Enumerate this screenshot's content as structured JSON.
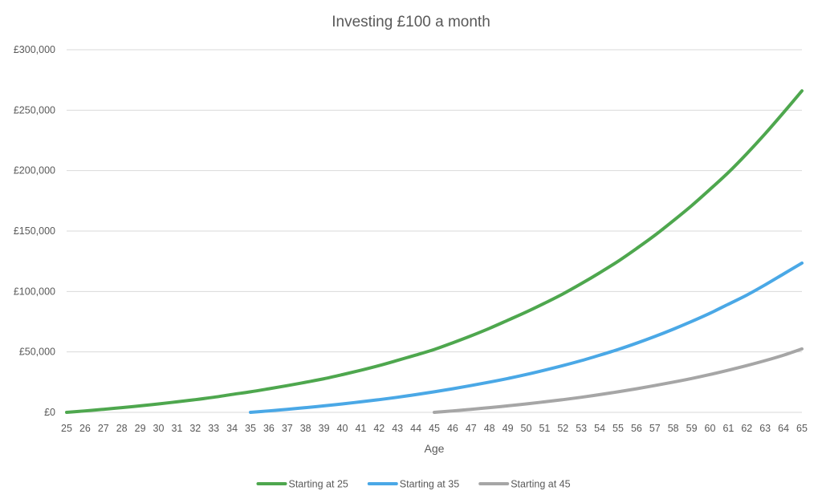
{
  "chart_data": {
    "type": "line",
    "title": "Investing £100 a month",
    "xlabel": "Age",
    "ylabel": "",
    "x": [
      25,
      26,
      27,
      28,
      29,
      30,
      31,
      32,
      33,
      34,
      35,
      36,
      37,
      38,
      39,
      40,
      41,
      42,
      43,
      44,
      45,
      46,
      47,
      48,
      49,
      50,
      51,
      52,
      53,
      54,
      55,
      56,
      57,
      58,
      59,
      60,
      61,
      62,
      63,
      64,
      65
    ],
    "ylim": [
      0,
      300000
    ],
    "yticks": [
      0,
      50000,
      100000,
      150000,
      200000,
      250000,
      300000
    ],
    "ytick_labels": [
      "£0",
      "£50,000",
      "£100,000",
      "£150,000",
      "£200,000",
      "£250,000",
      "£300,000"
    ],
    "grid": true,
    "legend_position": "bottom",
    "series": [
      {
        "name": "Starting at 25",
        "color": "#4ea74e",
        "x": [
          25,
          26,
          27,
          28,
          29,
          30,
          31,
          32,
          33,
          34,
          35,
          36,
          37,
          38,
          39,
          40,
          41,
          42,
          43,
          44,
          45,
          46,
          47,
          48,
          49,
          50,
          51,
          52,
          53,
          54,
          55,
          56,
          57,
          58,
          59,
          60,
          61,
          62,
          63,
          64,
          65
        ],
        "values": [
          0,
          1200,
          2500,
          3900,
          5400,
          7000,
          8700,
          10500,
          12500,
          14800,
          17000,
          19500,
          22100,
          24900,
          27800,
          31200,
          34800,
          38700,
          43000,
          47400,
          52000,
          57500,
          63300,
          69500,
          76200,
          83000,
          90300,
          98000,
          106500,
          115500,
          125000,
          135500,
          146500,
          158500,
          171000,
          184500,
          198500,
          214000,
          230500,
          248000,
          266000
        ]
      },
      {
        "name": "Starting at 35",
        "color": "#4aa8e6",
        "x": [
          35,
          36,
          37,
          38,
          39,
          40,
          41,
          42,
          43,
          44,
          45,
          46,
          47,
          48,
          49,
          50,
          51,
          52,
          53,
          54,
          55,
          56,
          57,
          58,
          59,
          60,
          61,
          62,
          63,
          64,
          65
        ],
        "values": [
          0,
          1200,
          2500,
          3900,
          5400,
          7000,
          8700,
          10500,
          12500,
          14700,
          17000,
          19500,
          22200,
          25000,
          28000,
          31300,
          34900,
          38700,
          42800,
          47300,
          52000,
          57200,
          62800,
          68800,
          75200,
          82000,
          89500,
          97000,
          105500,
          114500,
          123500
        ]
      },
      {
        "name": "Starting at 45",
        "color": "#a6a6a6",
        "x": [
          45,
          46,
          47,
          48,
          49,
          50,
          51,
          52,
          53,
          54,
          55,
          56,
          57,
          58,
          59,
          60,
          61,
          62,
          63,
          64,
          65
        ],
        "values": [
          0,
          1200,
          2500,
          3900,
          5400,
          7000,
          8700,
          10500,
          12500,
          14700,
          17000,
          19500,
          22200,
          25000,
          28000,
          31300,
          34900,
          38700,
          42800,
          47300,
          52500
        ]
      }
    ]
  }
}
